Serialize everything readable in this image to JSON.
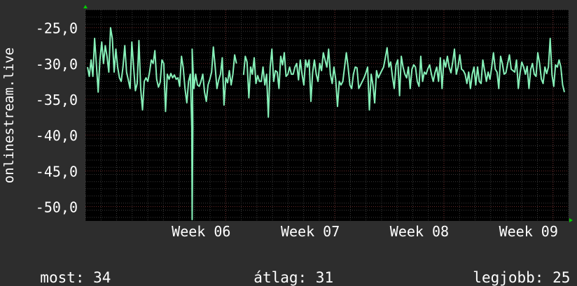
{
  "chart_data": {
    "type": "line",
    "ylabel": "onlinestream.live",
    "ylim": [
      -52,
      -22.5
    ],
    "y_ticks": [
      -25,
      -30,
      -35,
      -40,
      -45,
      -50
    ],
    "y_tick_labels": [
      "-25,0",
      "-30,0",
      "-35,0",
      "-40,0",
      "-45,0",
      "-50,0"
    ],
    "x_range_days": [
      0,
      31
    ],
    "x_ticks": [
      {
        "day": 9,
        "label": "Week 06"
      },
      {
        "day": 16,
        "label": "Week 07"
      },
      {
        "day": 23,
        "label": "Week 08"
      },
      {
        "day": 30,
        "label": "Week 09"
      }
    ],
    "grid": true,
    "colors": {
      "background": "#2d2d2d",
      "plot_area": "#000000",
      "line": "#86f0b8",
      "grid": "#3a3a3a",
      "week_grid": "#6a2a2a",
      "axis_arrow": "#00cc00",
      "text": "#ffffff"
    },
    "series": [
      {
        "values": [
          -30.5,
          -31.8,
          -29.5,
          -31.8,
          -26.5,
          -30.2,
          -34,
          -29.5,
          -27,
          -30,
          -27.5,
          -29,
          -31.2,
          -25,
          -26.5,
          -31.2,
          -28,
          -30.5,
          -32,
          -32.5,
          -30.5,
          -27.5,
          -31.2,
          -32.3,
          -33.5,
          -27,
          -30.5,
          -33.8,
          -32.8,
          -26.8,
          -33.5,
          -36.5,
          -32.5,
          -32,
          -32.5,
          -31.2,
          -29.5,
          -30,
          -28.2,
          -32.2,
          -33.3,
          -32.6,
          -29.5,
          -30,
          -36.7,
          -31.5,
          -32.2,
          -31.4,
          -32,
          -31.6,
          -32.2,
          -32,
          -33.2,
          -29,
          -30.6,
          -33.5,
          -35.5,
          -32.5,
          -31.5,
          -28,
          -33.5,
          -31.5,
          -33,
          -33.2,
          -32.5,
          -31.5,
          -34,
          -35.3,
          -33,
          -32.2,
          -31.2,
          -27.7,
          -30.5,
          -33.5,
          -32.3,
          -31.5,
          -29.2,
          -35.8,
          -32,
          -32.7,
          -31,
          -33,
          -31.5,
          -28.8,
          -30,
          -31.2,
          -31.4,
          -35.5,
          -31.6,
          -29,
          -29.8,
          -34.8,
          -30.5,
          -31.5,
          -29.2,
          -32.8,
          -31.7,
          -32.5,
          -32.5,
          -30.5,
          -33,
          -31.5,
          -37.5,
          -30.5,
          -28,
          -32.5,
          -31,
          -31.2,
          -33.5,
          -29,
          -30.2,
          -28.5,
          -31.8,
          -31.5,
          -30.5,
          -31.5,
          -31.5,
          -30.5,
          -30,
          -32.3,
          -29.5,
          -31.5,
          -33,
          -29.5,
          -30.5,
          -29.5,
          -35.3,
          -31.2,
          -29.5,
          -31.5,
          -32.5,
          -30,
          -31,
          -28.5,
          -29.5,
          -30.5,
          -28,
          -31.5,
          -32.8,
          -30.5,
          -32.2,
          -36,
          -32.5,
          -33,
          -32.5,
          -30.5,
          -28.5,
          -30.5,
          -33,
          -33.5,
          -31.5,
          -30.5,
          -30.6,
          -33.5,
          -33,
          -32.5,
          -32,
          -31.3,
          -30.5,
          -36.5,
          -31.5,
          -33,
          -35.5,
          -31,
          -32,
          -31.5,
          -31,
          -30.5,
          -29.2,
          -27.8,
          -30.5,
          -29.8,
          -31.8,
          -33.5,
          -30.2,
          -29.5,
          -34.5,
          -29,
          -30.5,
          -31.5,
          -32,
          -30.5,
          -33.5,
          -30.8,
          -30.2,
          -30.5,
          -32.5,
          -33.2,
          -29,
          -32.5,
          -31.2,
          -31.5,
          -30.7,
          -30.2,
          -31.5,
          -32.5,
          -31.3,
          -30.5,
          -32.5,
          -29.2,
          -33.5,
          -29.5,
          -30.5,
          -29,
          -30.5,
          -31.3,
          -29.8,
          -28,
          -31.5,
          -30.5,
          -28.8,
          -30.8,
          -31,
          -31.5,
          -32.8,
          -31.2,
          -33.5,
          -31.5,
          -30.5,
          -33,
          -30.5,
          -32.5,
          -32.8,
          -29.5,
          -31,
          -32.5,
          -31.2,
          -32.2,
          -30.5,
          -28.5,
          -30.8,
          -31.2,
          -33.5,
          -29,
          -30,
          -31.5,
          -31.3,
          -30,
          -28.8,
          -30.8,
          -31,
          -31.2,
          -29.5,
          -33.5,
          -31.3,
          -29.8,
          -30.5,
          -31.5,
          -30.4,
          -33.5,
          -30.8,
          -30,
          -31.5,
          -31.8,
          -28.5,
          -30,
          -32.2,
          -32.8,
          -30.5,
          -31.4,
          -30.5,
          -26.5,
          -31.6,
          -33.2,
          -30.2,
          -30.5,
          -29.5,
          -30.5,
          -33,
          -34
        ]
      }
    ]
  },
  "stats": {
    "current": "most: 34",
    "average": "átlag: 31",
    "best": "legjobb: 25"
  }
}
